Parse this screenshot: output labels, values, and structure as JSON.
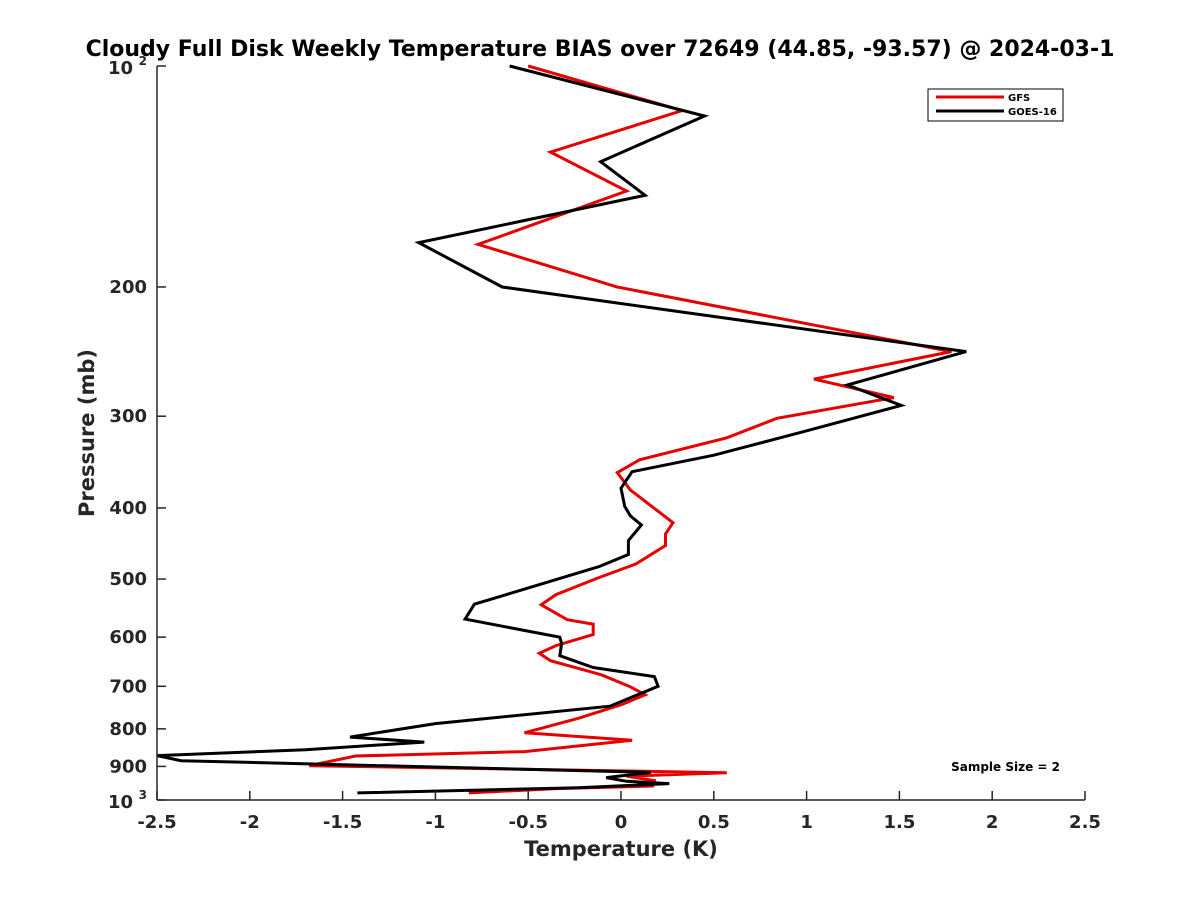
{
  "chart_data": {
    "type": "line",
    "title": "Cloudy Full Disk Weekly Temperature BIAS over 72649 (44.85, -93.57) @ 2024-03-1",
    "xlabel": "Temperature (K)",
    "ylabel": "Pressure (mb)",
    "xlim": [
      -2.5,
      2.5
    ],
    "ylim": [
      100,
      1000
    ],
    "yscale": "log",
    "y_reversed": true,
    "grid": false,
    "legend_position": "top-right",
    "x_ticks": [
      {
        "value": -2.5,
        "label": "-2.5"
      },
      {
        "value": -2,
        "label": "-2"
      },
      {
        "value": -1.5,
        "label": "-1.5"
      },
      {
        "value": -1,
        "label": "-1"
      },
      {
        "value": -0.5,
        "label": "-0.5"
      },
      {
        "value": 0,
        "label": "0"
      },
      {
        "value": 0.5,
        "label": "0.5"
      },
      {
        "value": 1,
        "label": "1"
      },
      {
        "value": 1.5,
        "label": "1.5"
      },
      {
        "value": 2,
        "label": "2"
      },
      {
        "value": 2.5,
        "label": "2.5"
      }
    ],
    "y_ticks": [
      {
        "value": 200,
        "label": "200"
      },
      {
        "value": 300,
        "label": "300"
      },
      {
        "value": 400,
        "label": "400"
      },
      {
        "value": 500,
        "label": "500"
      },
      {
        "value": 600,
        "label": "600"
      },
      {
        "value": 700,
        "label": "700"
      },
      {
        "value": 800,
        "label": "800"
      },
      {
        "value": 900,
        "label": "900"
      }
    ],
    "y_power_ticks": [
      {
        "value": 100,
        "base": "10",
        "exp": "2"
      },
      {
        "value": 1000,
        "base": "10",
        "exp": "3"
      }
    ],
    "annotation": "Sample Size = 2",
    "series": [
      {
        "name": "GFS",
        "color": "#e60000",
        "points": [
          [
            -0.5,
            100
          ],
          [
            0.33,
            115
          ],
          [
            -0.38,
            131
          ],
          [
            0.03,
            148
          ],
          [
            -0.77,
            175
          ],
          [
            -0.02,
            200
          ],
          [
            1.78,
            245
          ],
          [
            1.04,
            267
          ],
          [
            1.47,
            283
          ],
          [
            0.84,
            302
          ],
          [
            0.57,
            321
          ],
          [
            0.1,
            344
          ],
          [
            -0.02,
            358
          ],
          [
            0.05,
            378
          ],
          [
            0.28,
            419
          ],
          [
            0.24,
            434
          ],
          [
            0.24,
            450
          ],
          [
            0.08,
            477
          ],
          [
            -0.13,
            499
          ],
          [
            -0.35,
            525
          ],
          [
            -0.43,
            542
          ],
          [
            -0.29,
            568
          ],
          [
            -0.15,
            576
          ],
          [
            -0.15,
            595
          ],
          [
            -0.35,
            616
          ],
          [
            -0.44,
            631
          ],
          [
            -0.38,
            646
          ],
          [
            -0.17,
            668
          ],
          [
            -0.1,
            676
          ],
          [
            0.05,
            701
          ],
          [
            0.13,
            719
          ],
          [
            0.0,
            742
          ],
          [
            -0.06,
            750
          ],
          [
            -0.23,
            774
          ],
          [
            -0.52,
            810
          ],
          [
            0.06,
            829
          ],
          [
            -0.52,
            859
          ],
          [
            -1.43,
            871
          ],
          [
            -1.68,
            898
          ],
          [
            0.57,
            918
          ],
          [
            0.03,
            928
          ],
          [
            0.18,
            941
          ],
          [
            0.17,
            957
          ],
          [
            -0.35,
            965
          ],
          [
            -0.82,
            978
          ]
        ]
      },
      {
        "name": "GOES-16",
        "color": "#000000",
        "points": [
          [
            -0.6,
            100
          ],
          [
            0.45,
            117
          ],
          [
            -0.11,
            135
          ],
          [
            0.13,
            150
          ],
          [
            -1.09,
            174
          ],
          [
            -0.64,
            200
          ],
          [
            1.86,
            245
          ],
          [
            1.22,
            272
          ],
          [
            1.51,
            290
          ],
          [
            0.98,
            315
          ],
          [
            0.5,
            339
          ],
          [
            0.06,
            357
          ],
          [
            0.0,
            376
          ],
          [
            0.02,
            398
          ],
          [
            0.05,
            410
          ],
          [
            0.11,
            422
          ],
          [
            0.04,
            443
          ],
          [
            0.04,
            463
          ],
          [
            -0.12,
            481
          ],
          [
            -0.79,
            541
          ],
          [
            -0.84,
            567
          ],
          [
            -0.33,
            600
          ],
          [
            -0.32,
            612
          ],
          [
            -0.33,
            636
          ],
          [
            -0.15,
            660
          ],
          [
            0.18,
            679
          ],
          [
            0.2,
            700
          ],
          [
            -0.06,
            745
          ],
          [
            -1.0,
            787
          ],
          [
            -1.46,
            821
          ],
          [
            -1.06,
            834
          ],
          [
            -1.7,
            854
          ],
          [
            -2.5,
            870
          ],
          [
            -2.37,
            884
          ],
          [
            0.16,
            917
          ],
          [
            -0.08,
            932
          ],
          [
            0.03,
            943
          ],
          [
            0.26,
            950
          ],
          [
            -0.23,
            962
          ],
          [
            -1.42,
            978
          ]
        ]
      }
    ]
  }
}
